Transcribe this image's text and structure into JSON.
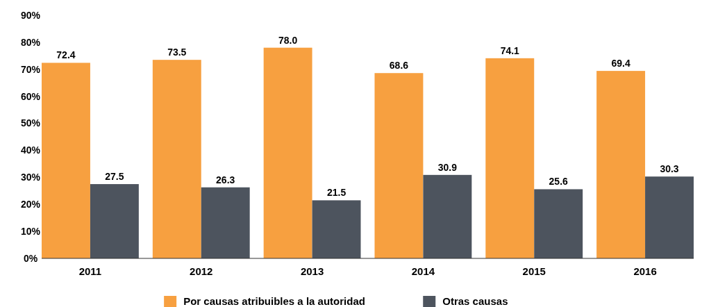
{
  "chart_data": {
    "type": "bar",
    "categories": [
      "2011",
      "2012",
      "2013",
      "2014",
      "2015",
      "2016"
    ],
    "series": [
      {
        "name": "Por causas atribuibles a la autoridad",
        "color": "#f7a040",
        "values": [
          72.4,
          73.5,
          78.0,
          68.6,
          74.1,
          69.4
        ],
        "value_labels": [
          "72.4",
          "73.5",
          "78.0",
          "68.6",
          "74.1",
          "69.4"
        ]
      },
      {
        "name": "Otras causas",
        "color": "#4d545e",
        "values": [
          27.5,
          26.3,
          21.5,
          30.9,
          25.6,
          30.3
        ],
        "value_labels": [
          "27.5",
          "26.3",
          "21.5",
          "30.9",
          "25.6",
          "30.3"
        ]
      }
    ],
    "ylim": [
      0,
      90
    ],
    "yticks": [
      {
        "value": 0,
        "label": "0%"
      },
      {
        "value": 10,
        "label": "10%"
      },
      {
        "value": 20,
        "label": "20%"
      },
      {
        "value": 30,
        "label": "30%"
      },
      {
        "value": 40,
        "label": "40%"
      },
      {
        "value": 50,
        "label": "50%"
      },
      {
        "value": 60,
        "label": "60%"
      },
      {
        "value": 70,
        "label": "70%"
      },
      {
        "value": 80,
        "label": "80%"
      },
      {
        "value": 90,
        "label": "90%"
      }
    ],
    "grid": false,
    "legend": "bottom"
  }
}
